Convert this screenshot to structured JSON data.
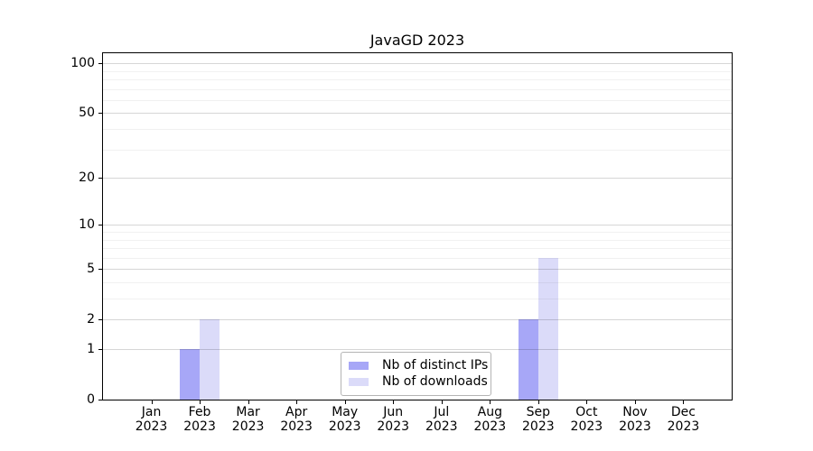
{
  "figure": {
    "title": "JavaGD 2023"
  },
  "chart_data": {
    "type": "bar",
    "title": "JavaGD 2023",
    "categories": [
      "Jan",
      "Feb",
      "Mar",
      "Apr",
      "May",
      "Jun",
      "Jul",
      "Aug",
      "Sep",
      "Oct",
      "Nov",
      "Dec"
    ],
    "category_year": "2023",
    "series": [
      {
        "name": "Nb of distinct IPs",
        "color": "#a7a7f7",
        "values": [
          0,
          1,
          0,
          0,
          0,
          0,
          0,
          0,
          2,
          0,
          0,
          0
        ]
      },
      {
        "name": "Nb of downloads",
        "color": "#dbdbf9",
        "values": [
          0,
          2,
          0,
          0,
          0,
          0,
          0,
          0,
          6,
          0,
          0,
          0
        ]
      }
    ],
    "xlabel": "",
    "ylabel": "",
    "yscale": "log1p",
    "ylim": [
      0,
      115
    ],
    "yticks": [
      0,
      1,
      2,
      5,
      10,
      20,
      50,
      100
    ],
    "yminorticks": [
      3,
      4,
      6,
      7,
      8,
      9,
      30,
      40,
      60,
      70,
      80,
      90
    ],
    "grid": true,
    "legend_position": "lower center"
  },
  "colors": {
    "background": "#ffffff",
    "axis": "#000000",
    "grid_major": "rgba(0,0,0,0.16)",
    "grid_minor": "rgba(0,0,0,0.055)",
    "legend_border": "#b4b4b4"
  }
}
